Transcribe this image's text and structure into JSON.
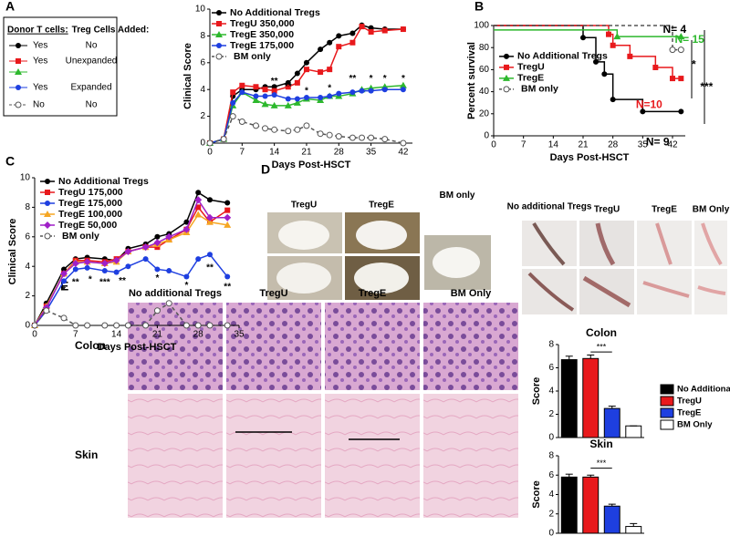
{
  "panels": [
    "A",
    "B",
    "C",
    "D",
    "E"
  ],
  "table": {
    "headers": [
      "Donor T cells:",
      "Treg Cells Added:"
    ],
    "rows": [
      [
        "Yes",
        "No"
      ],
      [
        "Yes",
        "Unexpanded"
      ],
      [
        "Yes",
        "Expanded"
      ],
      [
        "No",
        "No"
      ]
    ]
  },
  "photos": {
    "mice": [
      "TregU",
      "TregE",
      "BM only"
    ],
    "tails": [
      "No additional Tregs",
      "TregU",
      "TregE",
      "BM Only"
    ]
  },
  "histology": {
    "columns": [
      "No additional Tregs",
      "TregU",
      "TregE",
      "BM Only"
    ],
    "rows": [
      "Colon",
      "Skin"
    ]
  },
  "chart_data": [
    {
      "type": "line",
      "xlabel": "Days Post-HSCT",
      "ylabel": "Clinical Score",
      "legend": "upper left",
      "x": [
        0,
        3,
        5,
        7,
        10,
        12,
        14,
        17,
        19,
        21,
        24,
        26,
        28,
        31,
        33,
        35,
        38,
        42
      ],
      "xlim": [
        0,
        44
      ],
      "xticks": [
        0,
        7,
        14,
        21,
        28,
        35,
        42
      ],
      "ylim": [
        0,
        10
      ],
      "yticks": [
        0,
        2,
        4,
        6,
        8,
        10
      ],
      "series": [
        {
          "name": "No Additional Tregs",
          "color": "#000000",
          "marker": "circle",
          "values": [
            0,
            0.3,
            3.5,
            4.0,
            4.0,
            4.2,
            4.2,
            4.5,
            5.2,
            6.0,
            7.0,
            7.5,
            8.0,
            8.2,
            8.8,
            8.6,
            8.5,
            8.5
          ]
        },
        {
          "name": "TregU 350,000",
          "color": "#e8191c",
          "marker": "square",
          "values": [
            0,
            0.3,
            3.8,
            4.3,
            4.2,
            4.0,
            3.9,
            4.2,
            4.5,
            5.5,
            5.3,
            5.5,
            7.2,
            7.5,
            8.7,
            8.3,
            8.4,
            8.5
          ]
        },
        {
          "name": "TregE 350,000",
          "color": "#2db82d",
          "marker": "triangle",
          "values": [
            0,
            0.3,
            2.8,
            3.8,
            3.2,
            2.9,
            2.8,
            2.8,
            3.0,
            3.3,
            3.2,
            3.5,
            3.5,
            3.7,
            4.0,
            4.1,
            4.2,
            4.3
          ]
        },
        {
          "name": "TregE 175,000",
          "color": "#1e3fe0",
          "marker": "circle",
          "values": [
            0,
            0.3,
            3.0,
            3.8,
            3.5,
            3.5,
            3.6,
            3.3,
            3.3,
            3.4,
            3.4,
            3.5,
            3.7,
            3.8,
            3.9,
            3.9,
            4.0,
            4.0
          ]
        },
        {
          "name": "BM only",
          "color": "#555555",
          "marker": "open-circle",
          "dashed": true,
          "values": [
            0,
            0.3,
            2.0,
            1.6,
            1.3,
            1.1,
            1.0,
            0.9,
            1.0,
            1.3,
            0.7,
            0.6,
            0.5,
            0.4,
            0.4,
            0.4,
            0.3,
            0
          ]
        }
      ],
      "annotations": [
        {
          "text": "**",
          "x": 14,
          "y": 4.6
        },
        {
          "text": "**",
          "x": 17,
          "y": 4.2
        },
        {
          "text": "*",
          "x": 21,
          "y": 3.9
        },
        {
          "text": "*",
          "x": 26,
          "y": 4.1
        },
        {
          "text": "**",
          "x": 31,
          "y": 4.8
        },
        {
          "text": "*",
          "x": 35,
          "y": 4.8
        },
        {
          "text": "*",
          "x": 38,
          "y": 4.8
        },
        {
          "text": "*",
          "x": 42,
          "y": 4.8
        }
      ]
    },
    {
      "type": "step",
      "xlabel": "Days Post-HSCT",
      "ylabel": "Percent survival",
      "legend": "center left",
      "xlim": [
        0,
        45
      ],
      "xticks": [
        0,
        7,
        14,
        21,
        28,
        35,
        42
      ],
      "ylim": [
        0,
        100
      ],
      "yticks": [
        0,
        20,
        40,
        60,
        80,
        100
      ],
      "series": [
        {
          "name": "No Additional Tregs",
          "color": "#000000",
          "marker": "circle",
          "x": [
            0,
            21,
            24,
            26,
            28,
            35,
            44
          ],
          "values": [
            100,
            89,
            67,
            56,
            33,
            22,
            22
          ]
        },
        {
          "name": "TregU",
          "color": "#e8191c",
          "marker": "square",
          "x": [
            0,
            27,
            28,
            32,
            38,
            42,
            44
          ],
          "values": [
            100,
            92,
            82,
            72,
            62,
            52,
            52
          ]
        },
        {
          "name": "TregE",
          "color": "#2db82d",
          "marker": "triangle",
          "x": [
            0,
            29,
            44
          ],
          "values": [
            96,
            90,
            90
          ]
        },
        {
          "name": "BM only",
          "color": "#555555",
          "marker": "open-circle",
          "dashed": true,
          "x": [
            0,
            42,
            44
          ],
          "values": [
            100,
            78,
            78
          ]
        }
      ],
      "annotations": [
        {
          "text": "N= 4",
          "x": 42.5,
          "y": 96,
          "color": "#000000"
        },
        {
          "text": "N= 15",
          "x": 46,
          "y": 87,
          "color": "#2db82d"
        },
        {
          "text": "N=10",
          "x": 36.5,
          "y": 28,
          "color": "#e8191c"
        },
        {
          "text": "N= 9",
          "x": 38.5,
          "y": -6,
          "color": "#000000"
        },
        {
          "text": "*",
          "x": 47,
          "y": 64,
          "color": "#000000"
        },
        {
          "text": "***",
          "x": 50,
          "y": 44,
          "color": "#000000"
        }
      ]
    },
    {
      "type": "line",
      "xlabel": "Days Post-HSCT",
      "ylabel": "Clinical Score",
      "legend": "upper left",
      "x": [
        0,
        2,
        5,
        7,
        9,
        12,
        14,
        16,
        19,
        21,
        23,
        26,
        28,
        30,
        33
      ],
      "xlim": [
        0,
        35
      ],
      "xticks": [
        0,
        7,
        14,
        21,
        28,
        35
      ],
      "ylim": [
        0,
        10
      ],
      "yticks": [
        0,
        2,
        4,
        6,
        8,
        10
      ],
      "series": [
        {
          "name": "No Additional Tregs",
          "color": "#000000",
          "marker": "circle",
          "values": [
            0,
            1.5,
            3.8,
            4.5,
            4.6,
            4.5,
            4.4,
            5.2,
            5.5,
            6.0,
            6.2,
            7.0,
            9.0,
            8.5,
            8.3
          ]
        },
        {
          "name": "TregU 175,000",
          "color": "#e8191c",
          "marker": "square",
          "values": [
            0,
            1.3,
            3.5,
            4.4,
            4.4,
            4.3,
            4.5,
            5.0,
            5.3,
            5.3,
            5.8,
            6.5,
            8.0,
            7.0,
            7.8
          ]
        },
        {
          "name": "TregE 175,000",
          "color": "#1e3fe0",
          "marker": "circle",
          "values": [
            0,
            1.0,
            3.0,
            3.8,
            3.9,
            3.7,
            3.6,
            4.0,
            4.5,
            3.8,
            3.7,
            3.3,
            4.5,
            4.8,
            3.3
          ]
        },
        {
          "name": "TregE 100,000",
          "color": "#f5a623",
          "marker": "triangle",
          "values": [
            0,
            1.3,
            3.5,
            4.3,
            4.3,
            4.2,
            4.3,
            5.0,
            5.3,
            5.5,
            5.8,
            6.3,
            7.5,
            7.0,
            6.8
          ]
        },
        {
          "name": "TregE 50,000",
          "color": "#a020c8",
          "marker": "diamond",
          "values": [
            0,
            1.2,
            3.5,
            4.2,
            4.3,
            4.2,
            4.4,
            5.0,
            5.3,
            5.6,
            6.0,
            6.5,
            8.5,
            7.3,
            7.3
          ]
        },
        {
          "name": "BM only",
          "color": "#555555",
          "marker": "open-circle",
          "dashed": true,
          "values": [
            0,
            1.0,
            0.5,
            0,
            0,
            0,
            0,
            0,
            0,
            1.0,
            1.5,
            0,
            0,
            0,
            0
          ]
        }
      ],
      "annotations": [
        {
          "text": "*",
          "x": 5,
          "y": 2.4
        },
        {
          "text": "**",
          "x": 7,
          "y": 2.9
        },
        {
          "text": "*",
          "x": 9.5,
          "y": 3.1
        },
        {
          "text": "***",
          "x": 12,
          "y": 2.9
        },
        {
          "text": "**",
          "x": 15,
          "y": 3.0
        },
        {
          "text": "*",
          "x": 21,
          "y": 3.2
        },
        {
          "text": "*",
          "x": 26,
          "y": 2.7
        },
        {
          "text": "**",
          "x": 30,
          "y": 3.9
        },
        {
          "text": "**",
          "x": 33,
          "y": 2.6
        }
      ]
    },
    {
      "type": "bar",
      "title": "Colon",
      "ylabel": "Score",
      "legend": "right",
      "categories": [
        "No Additional Tregs",
        "TregU",
        "TregE",
        "BM Only"
      ],
      "colors": [
        "#000000",
        "#e8191c",
        "#1e3fe0",
        "#ffffff"
      ],
      "values": [
        6.7,
        6.8,
        2.5,
        1.0
      ],
      "errors": [
        0.3,
        0.3,
        0.2,
        0
      ],
      "ylim": [
        0,
        8
      ],
      "yticks": [
        0,
        2,
        4,
        6,
        8
      ],
      "annotations": [
        {
          "text": "***",
          "y": 7.6
        }
      ]
    },
    {
      "type": "bar",
      "title": "Skin",
      "ylabel": "Score",
      "categories": [
        "No Additional Tregs",
        "TregU",
        "TregE",
        "BM Only"
      ],
      "colors": [
        "#000000",
        "#e8191c",
        "#1e3fe0",
        "#ffffff"
      ],
      "values": [
        5.8,
        5.8,
        2.8,
        0.7
      ],
      "errors": [
        0.3,
        0.2,
        0.2,
        0.3
      ],
      "ylim": [
        0,
        8
      ],
      "yticks": [
        0,
        2,
        4,
        6,
        8
      ],
      "annotations": [
        {
          "text": "***",
          "y": 7.0
        }
      ]
    }
  ]
}
